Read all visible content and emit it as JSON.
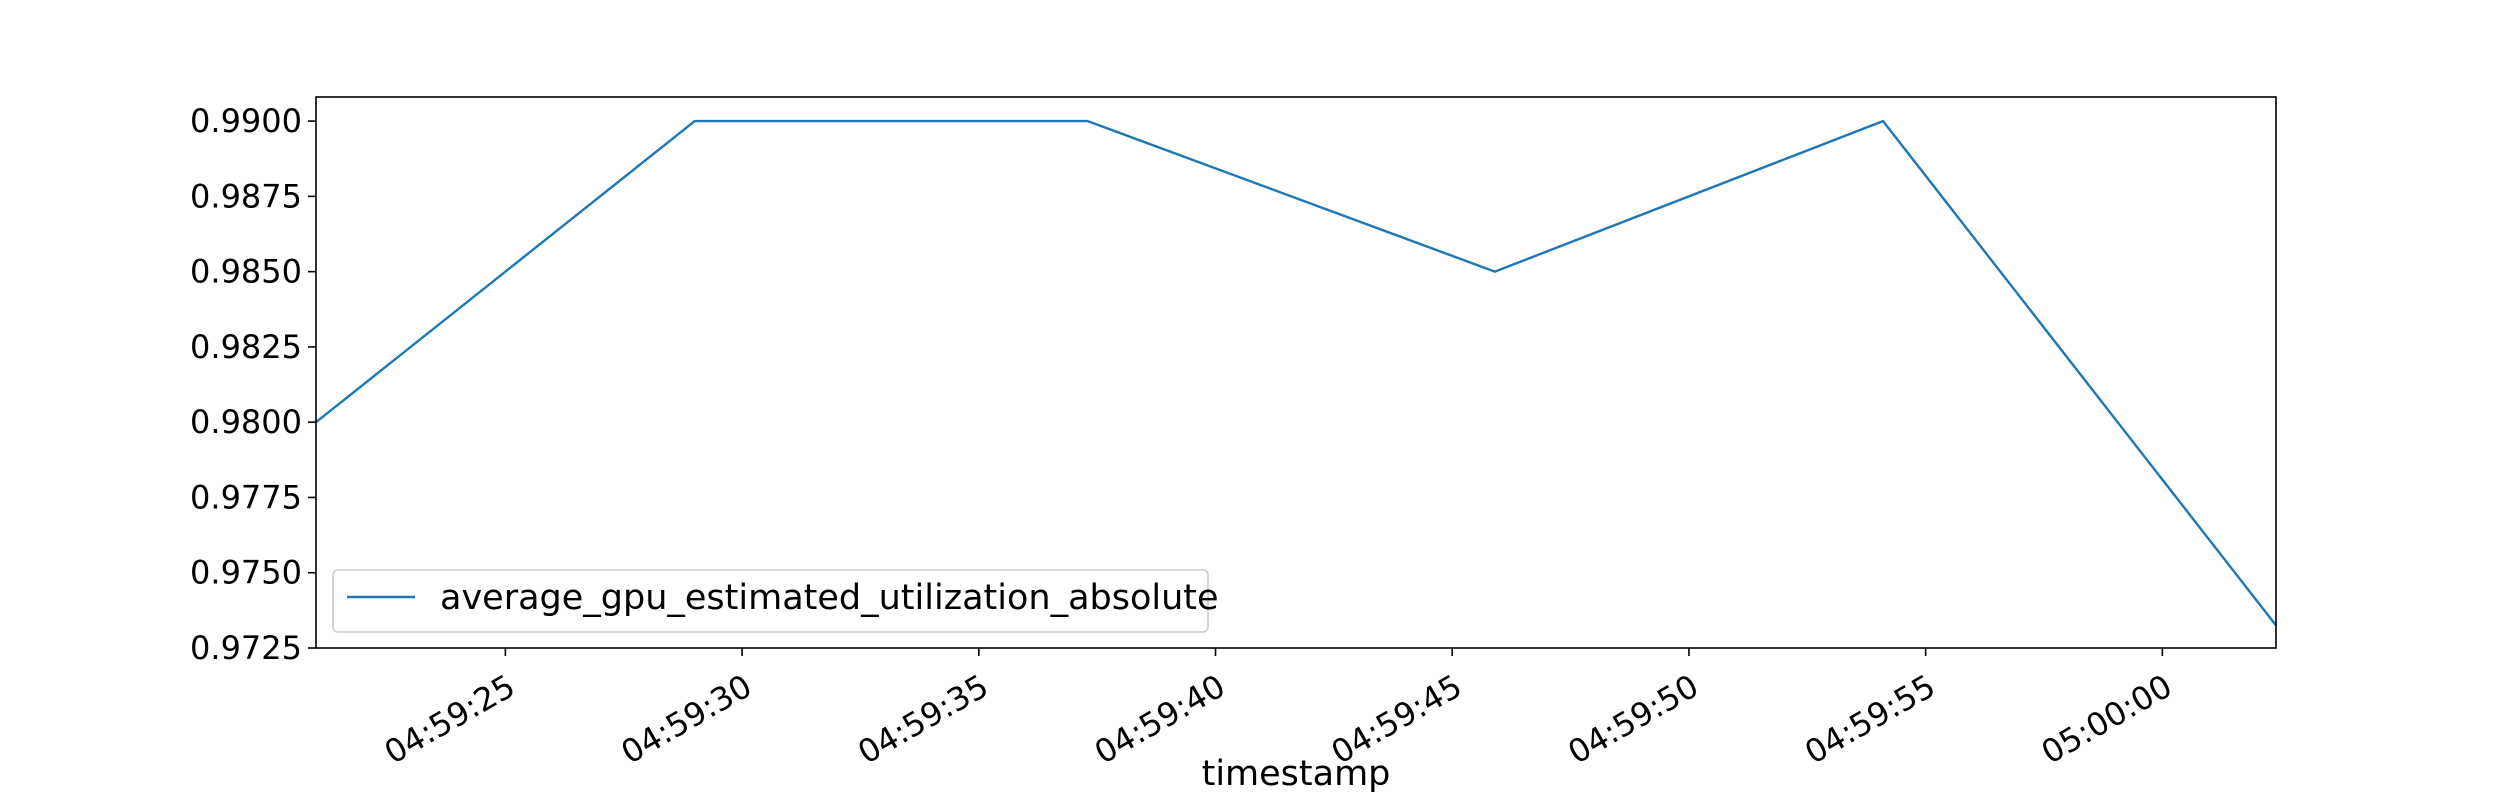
{
  "chart_data": {
    "type": "line",
    "title": "",
    "xlabel": "timestamp",
    "ylabel": "",
    "x": [
      "04:59:21",
      "04:59:29",
      "04:59:37.3",
      "04:59:45.9",
      "04:59:54.1",
      "05:00:02.4"
    ],
    "series": [
      {
        "name": "average_gpu_estimated_utilization_absolute",
        "values": [
          0.98,
          0.99,
          0.99,
          0.985,
          0.99,
          0.97325
        ],
        "color": "#1f77b4"
      }
    ],
    "xlim": [
      "04:59:21",
      "05:00:02.4"
    ],
    "ylim": [
      0.9725,
      0.9908
    ],
    "xticks": [
      "04:59:25",
      "04:59:30",
      "04:59:35",
      "04:59:40",
      "04:59:45",
      "04:59:50",
      "04:59:55",
      "05:00:00"
    ],
    "yticks": [
      "0.9725",
      "0.9750",
      "0.9775",
      "0.9800",
      "0.9825",
      "0.9850",
      "0.9875",
      "0.9900"
    ],
    "grid": false,
    "legend": "lower-left"
  }
}
